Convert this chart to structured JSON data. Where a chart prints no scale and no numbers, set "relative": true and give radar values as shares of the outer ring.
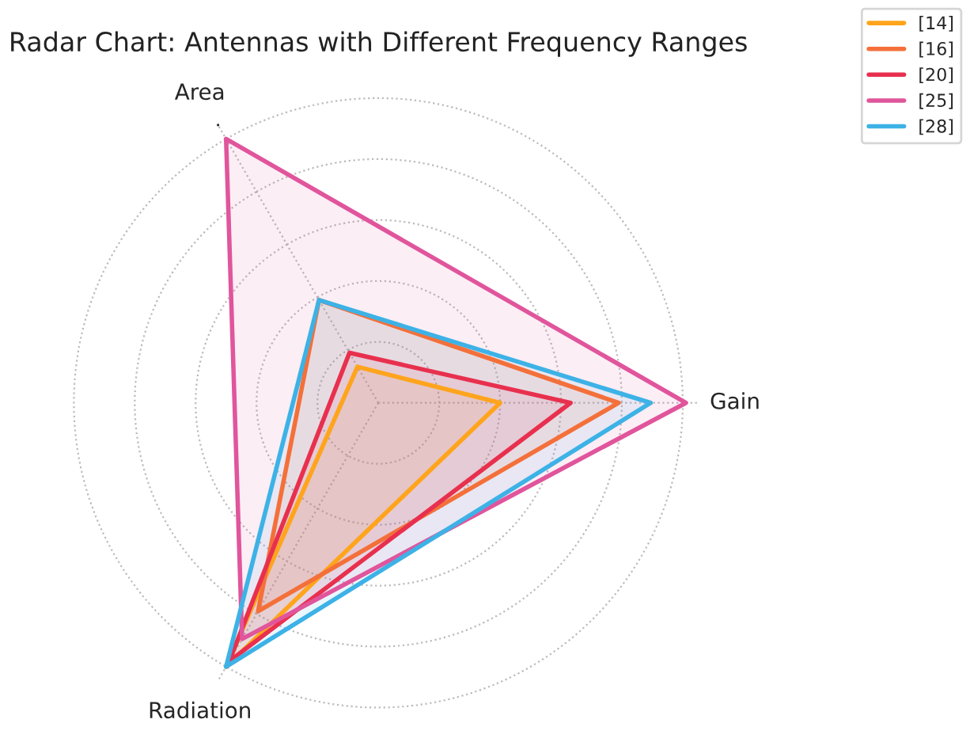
{
  "chart_data": {
    "type": "radar",
    "title": "Radar Chart: Antennas with Different Frequency Ranges",
    "categories": [
      "Area",
      "Gain",
      "Radiation"
    ],
    "relative": true,
    "grid": true,
    "legend": "top right",
    "series": [
      {
        "name": "[14]",
        "color": "#ffa41c",
        "values": [
          0.13,
          0.38,
          0.95
        ]
      },
      {
        "name": "[16]",
        "color": "#f4703a",
        "values": [
          0.37,
          0.75,
          0.75
        ]
      },
      {
        "name": "[20]",
        "color": "#e8304e",
        "values": [
          0.18,
          0.6,
          0.93
        ]
      },
      {
        "name": "[25]",
        "color": "#e0559c",
        "values": [
          0.95,
          0.96,
          0.85
        ]
      },
      {
        "name": "[28]",
        "color": "#3db2e6",
        "values": [
          0.37,
          0.85,
          0.95
        ]
      }
    ]
  }
}
